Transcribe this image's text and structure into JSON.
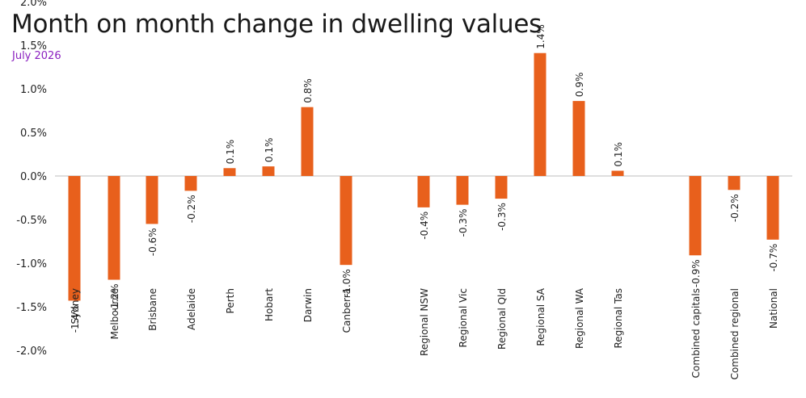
{
  "title": "Month on month change in dwelling values",
  "subtitle": "July 2026",
  "chart_data": {
    "type": "bar",
    "title": "Month on month change in dwelling values",
    "subtitle": "July 2026",
    "ylim": [
      -2.0,
      2.0
    ],
    "yticks": [
      2.0,
      1.5,
      1.0,
      0.5,
      0.0,
      -0.5,
      -1.0,
      -1.5,
      -2.0
    ],
    "ytick_labels": [
      "2.0%",
      "1.5%",
      "1.0%",
      "0.5%",
      "0.0%",
      "-0.5%",
      "-1.0%",
      "-1.5%",
      "-2.0%"
    ],
    "grid": false,
    "bar_color": "#e8601c",
    "categories": [
      "Sydney",
      "Melbourne",
      "Brisbane",
      "Adelaide",
      "Perth",
      "Hobart",
      "Darwin",
      "Canberra",
      "Regional NSW",
      "Regional Vic",
      "Regional Qld",
      "Regional SA",
      "Regional WA",
      "Regional Tas",
      "Combined capitals",
      "Combined regional",
      "National"
    ],
    "values": [
      -1.43,
      -1.19,
      -0.55,
      -0.17,
      0.09,
      0.11,
      0.79,
      -1.02,
      -0.36,
      -0.33,
      -0.26,
      1.41,
      0.86,
      0.06,
      -0.91,
      -0.16,
      -0.73
    ],
    "data_labels": [
      "-1.4%",
      "-1.2%",
      "-0.6%",
      "-0.2%",
      "0.1%",
      "0.1%",
      "0.8%",
      "-1.0%",
      "-0.4%",
      "-0.3%",
      "-0.3%",
      "1.4%",
      "0.9%",
      "0.1%",
      "-0.9%",
      "-0.2%",
      "-0.7%"
    ]
  }
}
